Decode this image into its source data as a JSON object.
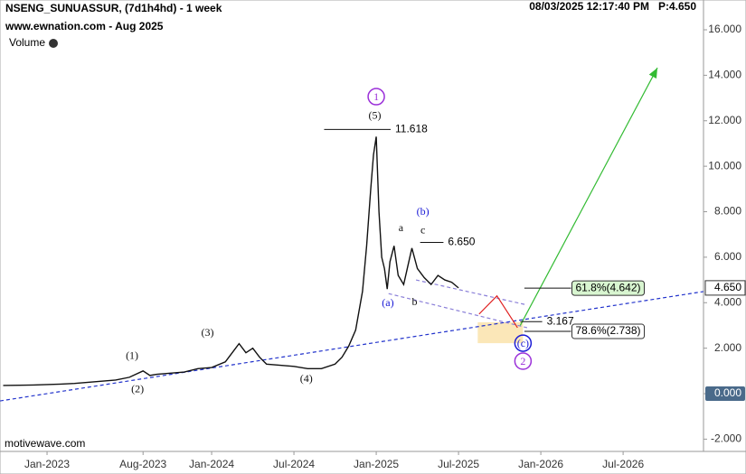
{
  "chart_data": {
    "type": "line",
    "title": "NSENG_SUNUASSUR, (7d1h4hd) - 1 week",
    "subtitle": "www.ewnation.com  - Aug 2025",
    "volume_label": "Volume",
    "timestamp": "08/03/2025 12:17:40 PM",
    "price_label": "P:4.650",
    "watermark": "motivewave.com",
    "series": [
      {
        "name": "NSENG_SUNUASSUR",
        "color": "#111111",
        "x": [
          -3.2,
          -2,
          -1,
          0,
          1,
          2,
          3,
          4,
          5,
          6,
          7,
          7.5,
          8,
          9,
          10,
          11,
          12,
          13,
          14,
          14.5,
          15,
          15.5,
          16,
          17,
          18,
          19,
          20,
          21,
          21.5,
          22,
          22.5,
          23,
          23.3,
          23.6,
          23.8,
          24,
          24.2,
          24.4,
          24.6,
          24.8,
          25,
          25.3,
          25.6,
          26,
          26.3,
          26.6,
          27,
          27.5,
          28,
          28.5,
          29,
          29.5,
          30
        ],
        "values": [
          0.36,
          0.37,
          0.38,
          0.4,
          0.42,
          0.45,
          0.5,
          0.55,
          0.6,
          0.72,
          1.0,
          0.8,
          0.85,
          0.9,
          0.95,
          1.1,
          1.15,
          1.4,
          2.2,
          1.8,
          2.0,
          1.6,
          1.3,
          1.25,
          1.2,
          1.1,
          1.1,
          1.3,
          1.6,
          2.1,
          2.8,
          4.5,
          6.5,
          9,
          10.5,
          11.3,
          8,
          6,
          5.5,
          4.6,
          5.8,
          6.5,
          5.2,
          4.8,
          5.6,
          6.4,
          5.5,
          5.1,
          4.8,
          5.2,
          5.0,
          4.9,
          4.65
        ]
      }
    ],
    "xlim": [
      -3.43,
      47.86
    ],
    "xticks": [
      {
        "value": 0,
        "label": "Jan-2023"
      },
      {
        "value": 7,
        "label": "Aug-2023"
      },
      {
        "value": 12,
        "label": "Jan-2024"
      },
      {
        "value": 18,
        "label": "Jul-2024"
      },
      {
        "value": 24,
        "label": "Jan-2025"
      },
      {
        "value": 30,
        "label": "Jul-2025"
      },
      {
        "value": 36,
        "label": "Jan-2026"
      },
      {
        "value": 42,
        "label": "Jul-2026"
      }
    ],
    "ylim": [
      -2.54,
      17.31
    ],
    "yticks": [
      {
        "value": -2,
        "label": "-2.000"
      },
      {
        "value": 0,
        "label": "0.000"
      },
      {
        "value": 2,
        "label": "2.000"
      },
      {
        "value": 4,
        "label": "4.000"
      },
      {
        "value": 6,
        "label": "6.000"
      },
      {
        "value": 8,
        "label": "8.000"
      },
      {
        "value": 10,
        "label": "10.000"
      },
      {
        "value": 12,
        "label": "12.000"
      },
      {
        "value": 14,
        "label": "14.000"
      },
      {
        "value": 16,
        "label": "16.000"
      }
    ],
    "last_price": {
      "value": 4.65,
      "label": "4.650"
    },
    "annotations": [
      {
        "text": "1",
        "x": 24,
        "y": 13.06,
        "color": "#9b30d9",
        "circle": true
      },
      {
        "text": "(5)",
        "x": 23.9,
        "y": 12.23,
        "color": "#111111"
      },
      {
        "text": "(b)",
        "x": 27.4,
        "y": 8.02,
        "color": "#1a1ad6"
      },
      {
        "text": "a",
        "x": 25.8,
        "y": 7.3,
        "color": "#111111"
      },
      {
        "text": "c",
        "x": 27.4,
        "y": 7.2,
        "color": "#111111"
      },
      {
        "text": "(a)",
        "x": 24.85,
        "y": 4.0,
        "color": "#1a1ad6"
      },
      {
        "text": "b",
        "x": 26.8,
        "y": 4.05,
        "color": "#111111"
      },
      {
        "text": "(1)",
        "x": 6.2,
        "y": 1.67,
        "color": "#111111"
      },
      {
        "text": "(2)",
        "x": 6.6,
        "y": 0.2,
        "color": "#111111"
      },
      {
        "text": "(3)",
        "x": 11.7,
        "y": 2.7,
        "color": "#111111"
      },
      {
        "text": "(4)",
        "x": 18.9,
        "y": 0.67,
        "color": "#111111"
      },
      {
        "text": "(c)",
        "x": 34.7,
        "y": 2.22,
        "color": "#1a1ad6",
        "circle": true
      },
      {
        "text": "2",
        "x": 34.7,
        "y": 1.43,
        "color": "#9b30d9",
        "circle": true
      }
    ],
    "levels": [
      {
        "label": "11.618",
        "value": 11.618,
        "x": [
          20.2,
          25.05
        ]
      },
      {
        "label": "6.650",
        "value": 6.65,
        "x": [
          27.2,
          28.9
        ]
      },
      {
        "label": "3.167",
        "value": 3.167,
        "x": [
          34.5,
          36.1
        ]
      },
      {
        "label": "61.8%(4.642)",
        "value": 4.642,
        "x": [
          34.8,
          38.2
        ],
        "box": "#d8f5d0"
      },
      {
        "label": "78.6%(2.738)",
        "value": 2.738,
        "x": [
          34.8,
          38.2
        ],
        "box": "#ffffff"
      }
    ],
    "overlays": [
      {
        "color": "#2233cc",
        "dash": true,
        "x": [
          -3.43,
          47.86
        ],
        "y": [
          -0.32,
          4.49
        ]
      },
      {
        "color": "#8a7fd8",
        "dash": true,
        "x": [
          26.9,
          35.0
        ],
        "y": [
          5.0,
          3.9
        ]
      },
      {
        "color": "#8a7fd8",
        "dash": true,
        "x": [
          24.9,
          35.0
        ],
        "y": [
          4.4,
          2.9
        ]
      },
      {
        "color": "#e02020",
        "x": [
          31.5,
          32.8,
          34.3
        ],
        "y": [
          3.5,
          4.3,
          2.9
        ]
      },
      {
        "color": "#33bb33",
        "x": [
          34.5,
          44.5
        ],
        "y": [
          3.0,
          14.33
        ],
        "arrow": true
      }
    ],
    "zone": {
      "x": [
        31.4,
        34.7
      ],
      "y": [
        2.22,
        3.14
      ],
      "color": "#fbe7b8"
    }
  }
}
